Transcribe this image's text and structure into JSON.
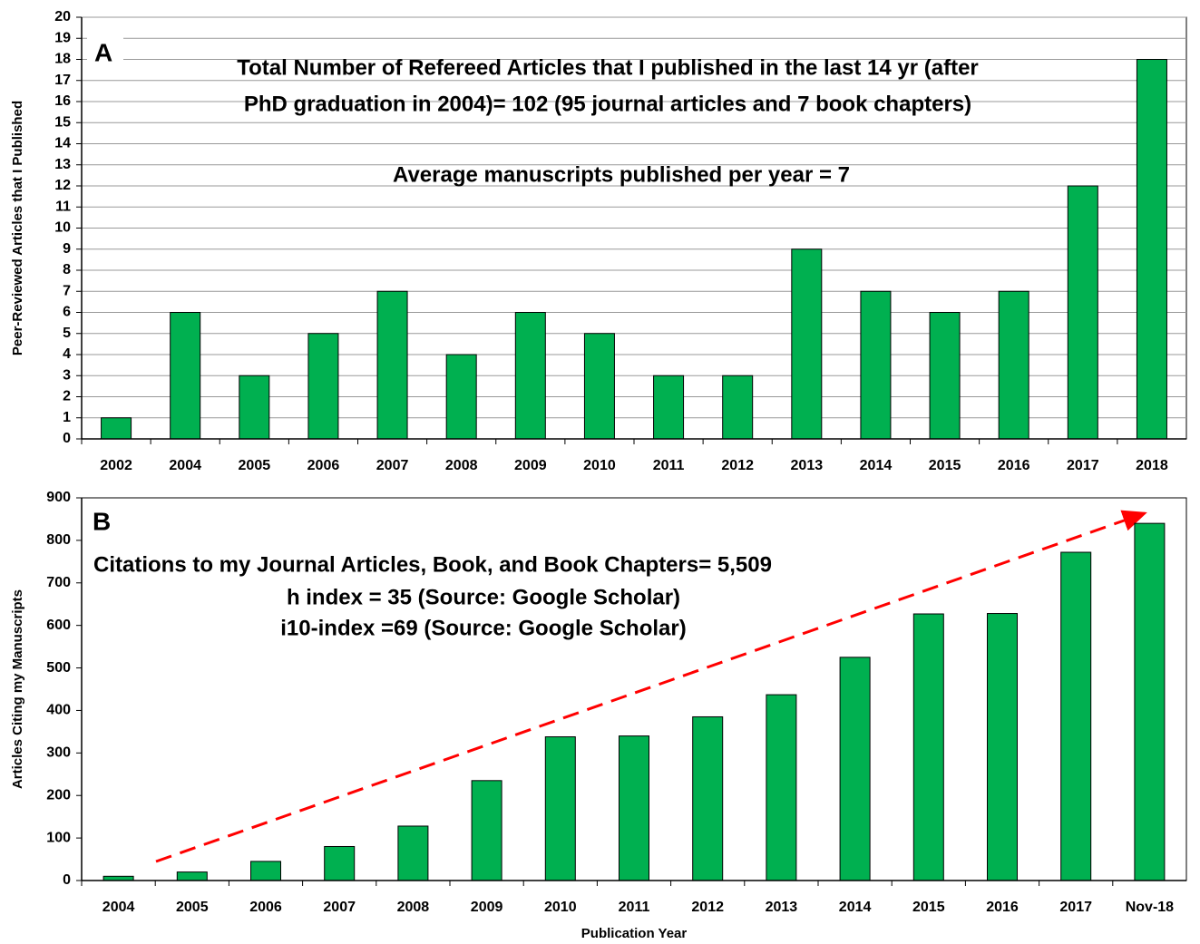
{
  "chart_data": [
    {
      "type": "bar",
      "panel_label": "A",
      "y_label": "Peer-Reviewed  Articles that I Published",
      "annotations": [
        "Total Number of Refereed Articles that I published in the last 14 yr (after",
        "PhD graduation in 2004)= 102 (95 journal articles and 7 book chapters)",
        "Average manuscripts published per year = 7"
      ],
      "categories": [
        "2002",
        "2004",
        "2005",
        "2006",
        "2007",
        "2008",
        "2009",
        "2010",
        "2011",
        "2012",
        "2013",
        "2014",
        "2015",
        "2016",
        "2017",
        "2018"
      ],
      "values": [
        1,
        6,
        3,
        5,
        7,
        4,
        6,
        5,
        3,
        3,
        9,
        7,
        6,
        7,
        12,
        18
      ],
      "color": "#00b050",
      "ylim": [
        0,
        20
      ],
      "yticks": [
        0,
        1,
        2,
        3,
        4,
        5,
        6,
        7,
        8,
        9,
        10,
        11,
        12,
        13,
        14,
        15,
        16,
        17,
        18,
        19,
        20
      ],
      "grid": true
    },
    {
      "type": "bar",
      "panel_label": "B",
      "y_label": "Articles Citing my Manuscripts",
      "x_label": "Publication Year",
      "annotations": [
        "Citations to my Journal Articles, Book, and Book Chapters= 5,509",
        "h index = 35 (Source: Google Scholar)",
        "i10-index =69 (Source: Google Scholar)"
      ],
      "categories": [
        "2004",
        "2005",
        "2006",
        "2007",
        "2008",
        "2009",
        "2010",
        "2011",
        "2012",
        "2013",
        "2014",
        "2015",
        "2016",
        "2017",
        "Nov-18"
      ],
      "values": [
        10,
        20,
        45,
        80,
        128,
        235,
        338,
        340,
        385,
        437,
        525,
        627,
        628,
        772,
        840
      ],
      "color": "#00b050",
      "ylim": [
        0,
        900
      ],
      "yticks": [
        0,
        100,
        200,
        300,
        400,
        500,
        600,
        700,
        800,
        900
      ],
      "grid": false
    }
  ]
}
